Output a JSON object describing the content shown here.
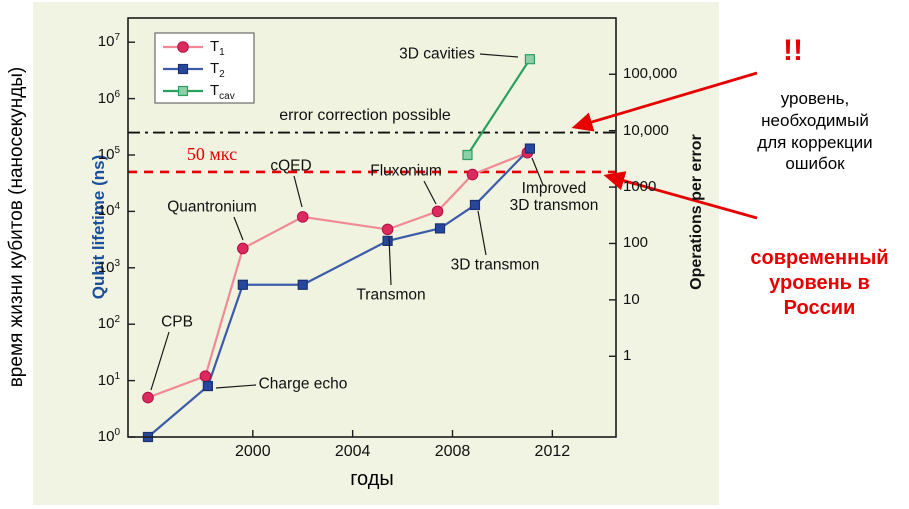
{
  "figure": {
    "bg": "#f1f4e2",
    "plot_bg": "#f0f3e0",
    "axis_color": "#1c1c1c",
    "accent_red": "#e60000"
  },
  "labels": {
    "y_axis_outer": "время жизни кубитов (наносекунды)"
  },
  "side_notes": {
    "bang": "!!",
    "correction_note": "уровень,\nнеобходимый\nдля коррекции\nошибок",
    "russia_note": "современный\nуровень в\nРоссии",
    "arrows": [
      [
        757,
        73,
        575,
        127
      ],
      [
        757,
        218,
        607,
        176
      ]
    ]
  },
  "chart_data": {
    "type": "line",
    "title": "",
    "xlabel": "годы",
    "ylabel": "Qubit lifetime (ns)",
    "y2label": "Operations per error",
    "x_range": [
      1995.0,
      2014.55
    ],
    "x_ticks": [
      2000,
      2004,
      2008,
      2012
    ],
    "y_log_range": [
      0,
      7
    ],
    "y2_ticks": [
      {
        "label": "100,000",
        "ns": 2700000
      },
      {
        "label": "10,000",
        "ns": 270000
      },
      {
        "label": "1000",
        "ns": 27000
      },
      {
        "label": "100",
        "ns": 2700
      },
      {
        "label": "10",
        "ns": 270
      },
      {
        "label": "1",
        "ns": 27
      }
    ],
    "series": [
      {
        "base": "T",
        "sub": "1",
        "marker": "circle",
        "line_color": "#f08a94",
        "marker_color": "#dd2a5e",
        "marker_edge": "#b01048",
        "points": [
          [
            1995.8,
            5
          ],
          [
            1998.1,
            12
          ],
          [
            1999.6,
            2200
          ],
          [
            2002.0,
            8000
          ],
          [
            2005.4,
            4800
          ],
          [
            2007.4,
            10000
          ],
          [
            2008.8,
            45000
          ],
          [
            2011.0,
            110000
          ]
        ]
      },
      {
        "base": "T",
        "sub": "2",
        "marker": "square",
        "line_color": "#3c5ca8",
        "marker_color": "#27479e",
        "marker_edge": "#1a3070",
        "points": [
          [
            1995.8,
            1
          ],
          [
            1998.2,
            8
          ],
          [
            1999.6,
            500
          ],
          [
            2002.0,
            500
          ],
          [
            2005.4,
            3000
          ],
          [
            2007.5,
            5000
          ],
          [
            2008.9,
            13000
          ],
          [
            2011.1,
            130000
          ]
        ]
      },
      {
        "base": "T",
        "sub": "cav",
        "marker": "square",
        "line_color": "#2aa05f",
        "marker_color": "#8bd0a6",
        "marker_edge": "#2f9e63",
        "points": [
          [
            2008.6,
            100000
          ],
          [
            2011.1,
            5000000
          ]
        ]
      }
    ],
    "ref_lines": [
      {
        "label": "error correction possible",
        "ns": 250000,
        "style": "dashdot",
        "color": "#111111",
        "width": 1.8
      },
      {
        "label": "50 мкс",
        "ns": 50000,
        "style": "dashed",
        "color": "#e60000",
        "width": 2.6
      }
    ],
    "annotations": [
      {
        "text": "CPB",
        "cx": 177,
        "cy": 322,
        "leader": [
          169,
          332,
          151,
          390
        ]
      },
      {
        "text": "Charge echo",
        "cx": 303,
        "cy": 384,
        "leader": [
          256,
          385,
          216,
          388
        ]
      },
      {
        "text": "Quantronium",
        "cx": 212,
        "cy": 207,
        "leader": [
          234,
          217,
          243,
          240
        ]
      },
      {
        "text": "cQED",
        "cx": 291,
        "cy": 166,
        "leader": [
          294,
          176,
          302,
          207
        ]
      },
      {
        "text": "Transmon",
        "cx": 391,
        "cy": 295,
        "leader": [
          391,
          285,
          389,
          237
        ]
      },
      {
        "text": "Fluxonium",
        "cx": 406,
        "cy": 171,
        "leader": [
          424,
          181,
          436,
          204
        ]
      },
      {
        "text": "3D transmon",
        "cx": 495,
        "cy": 265,
        "leader": [
          486,
          255,
          478,
          211
        ]
      },
      {
        "text": "Improved\n3D transmon",
        "cx": 554,
        "cy": 197,
        "leader": [
          543,
          185,
          532,
          158
        ]
      },
      {
        "text": "3D cavities",
        "cx": 437,
        "cy": 54,
        "leader": [
          480,
          54,
          518,
          57
        ]
      }
    ]
  }
}
